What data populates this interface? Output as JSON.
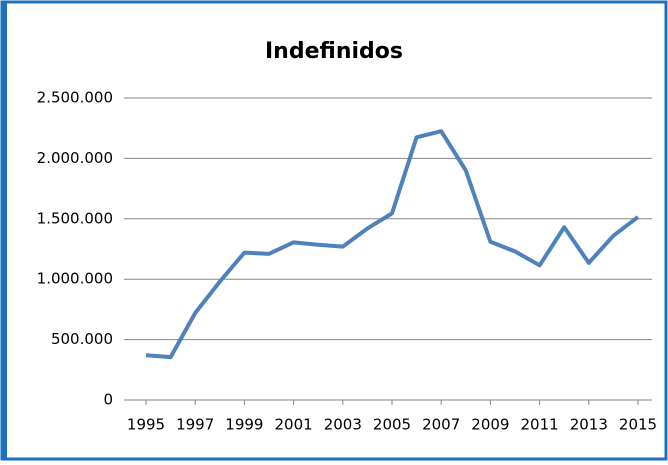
{
  "chart_data": {
    "type": "line",
    "title": "Indefinidos",
    "x": [
      1995,
      1996,
      1997,
      1998,
      1999,
      2000,
      2001,
      2002,
      2003,
      2004,
      2005,
      2006,
      2007,
      2008,
      2009,
      2010,
      2011,
      2012,
      2013,
      2014,
      2015
    ],
    "series": [
      {
        "name": "Indefinidos",
        "color": "#4f81bd",
        "values": [
          370000,
          355000,
          720000,
          980000,
          1220000,
          1210000,
          1305000,
          1285000,
          1270000,
          1420000,
          1545000,
          2175000,
          2225000,
          1900000,
          1310000,
          1230000,
          1115000,
          1430000,
          1135000,
          1360000,
          1515000
        ]
      }
    ],
    "xlim": [
      1995,
      2015
    ],
    "xticks": [
      1995,
      1997,
      1999,
      2001,
      2003,
      2005,
      2007,
      2009,
      2011,
      2013,
      2015
    ],
    "ylim": [
      0,
      2500000
    ],
    "yticks": [
      0,
      {
        "value": 500000,
        "label": "500.000"
      },
      {
        "value": 1000000,
        "label": "1.000.000"
      },
      {
        "value": 1500000,
        "label": "1.500.000"
      },
      {
        "value": 2000000,
        "label": "2.000.000"
      },
      {
        "value": 2500000,
        "label": "2.500.000"
      }
    ],
    "grid": true
  }
}
